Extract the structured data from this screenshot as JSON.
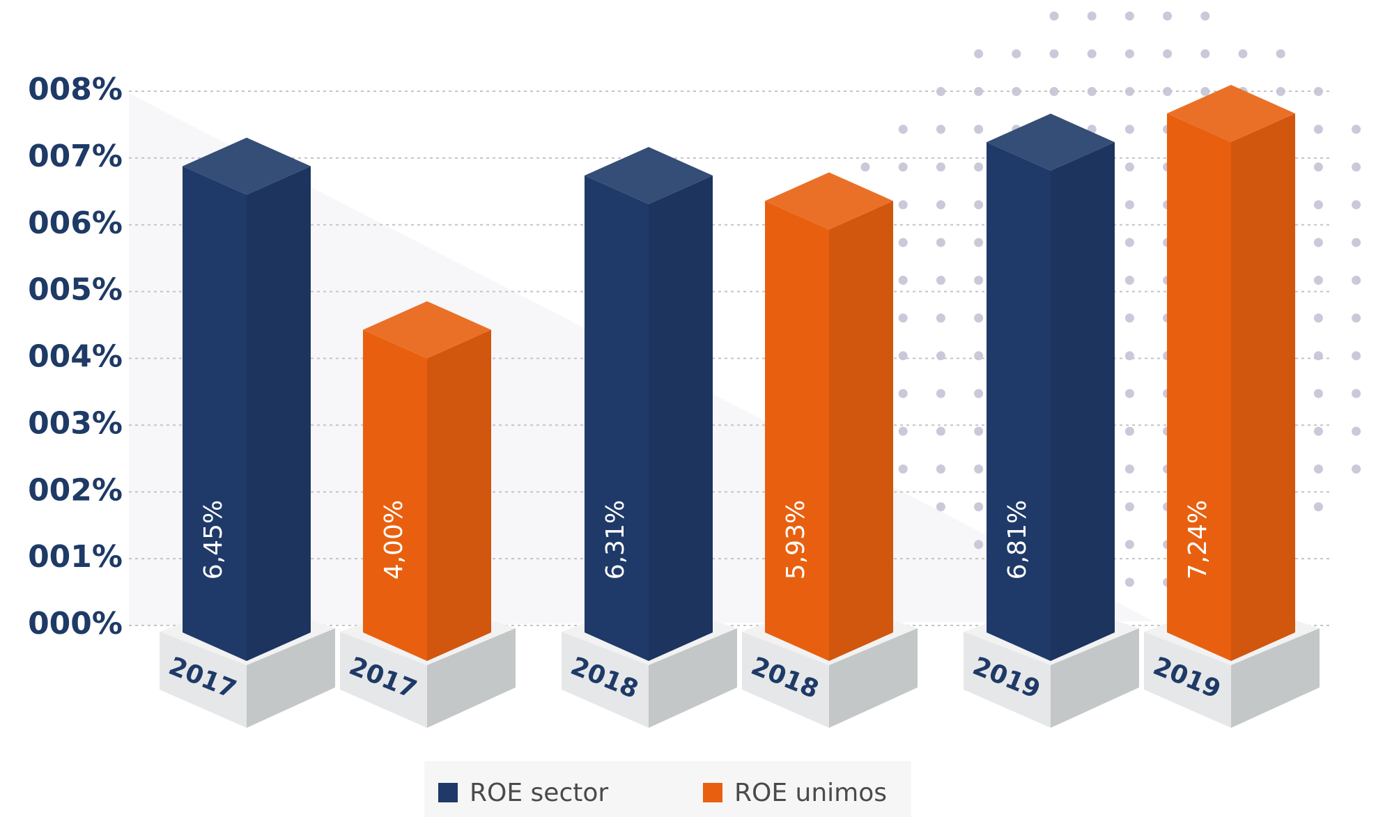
{
  "chart_data": {
    "type": "bar3d",
    "categories": [
      "2017",
      "2018",
      "2019"
    ],
    "series": [
      {
        "name": "ROE sector",
        "color": "#1f3a68",
        "values": [
          6.45,
          6.31,
          6.81
        ],
        "value_labels": [
          "6,45%",
          "6,31%",
          "6,81%"
        ]
      },
      {
        "name": "ROE unimos",
        "color": "#e8600f",
        "values": [
          4.0,
          5.93,
          7.24
        ],
        "value_labels": [
          "4,00%",
          "5,93%",
          "7,24%"
        ]
      }
    ],
    "ylim": [
      0,
      8
    ],
    "yticks": [
      {
        "value": 0,
        "label": "000%"
      },
      {
        "value": 1,
        "label": "001%"
      },
      {
        "value": 2,
        "label": "002%"
      },
      {
        "value": 3,
        "label": "003%"
      },
      {
        "value": 4,
        "label": "004%"
      },
      {
        "value": 5,
        "label": "005%"
      },
      {
        "value": 6,
        "label": "006%"
      },
      {
        "value": 7,
        "label": "007%"
      },
      {
        "value": 8,
        "label": "008%"
      }
    ],
    "grid": true
  }
}
